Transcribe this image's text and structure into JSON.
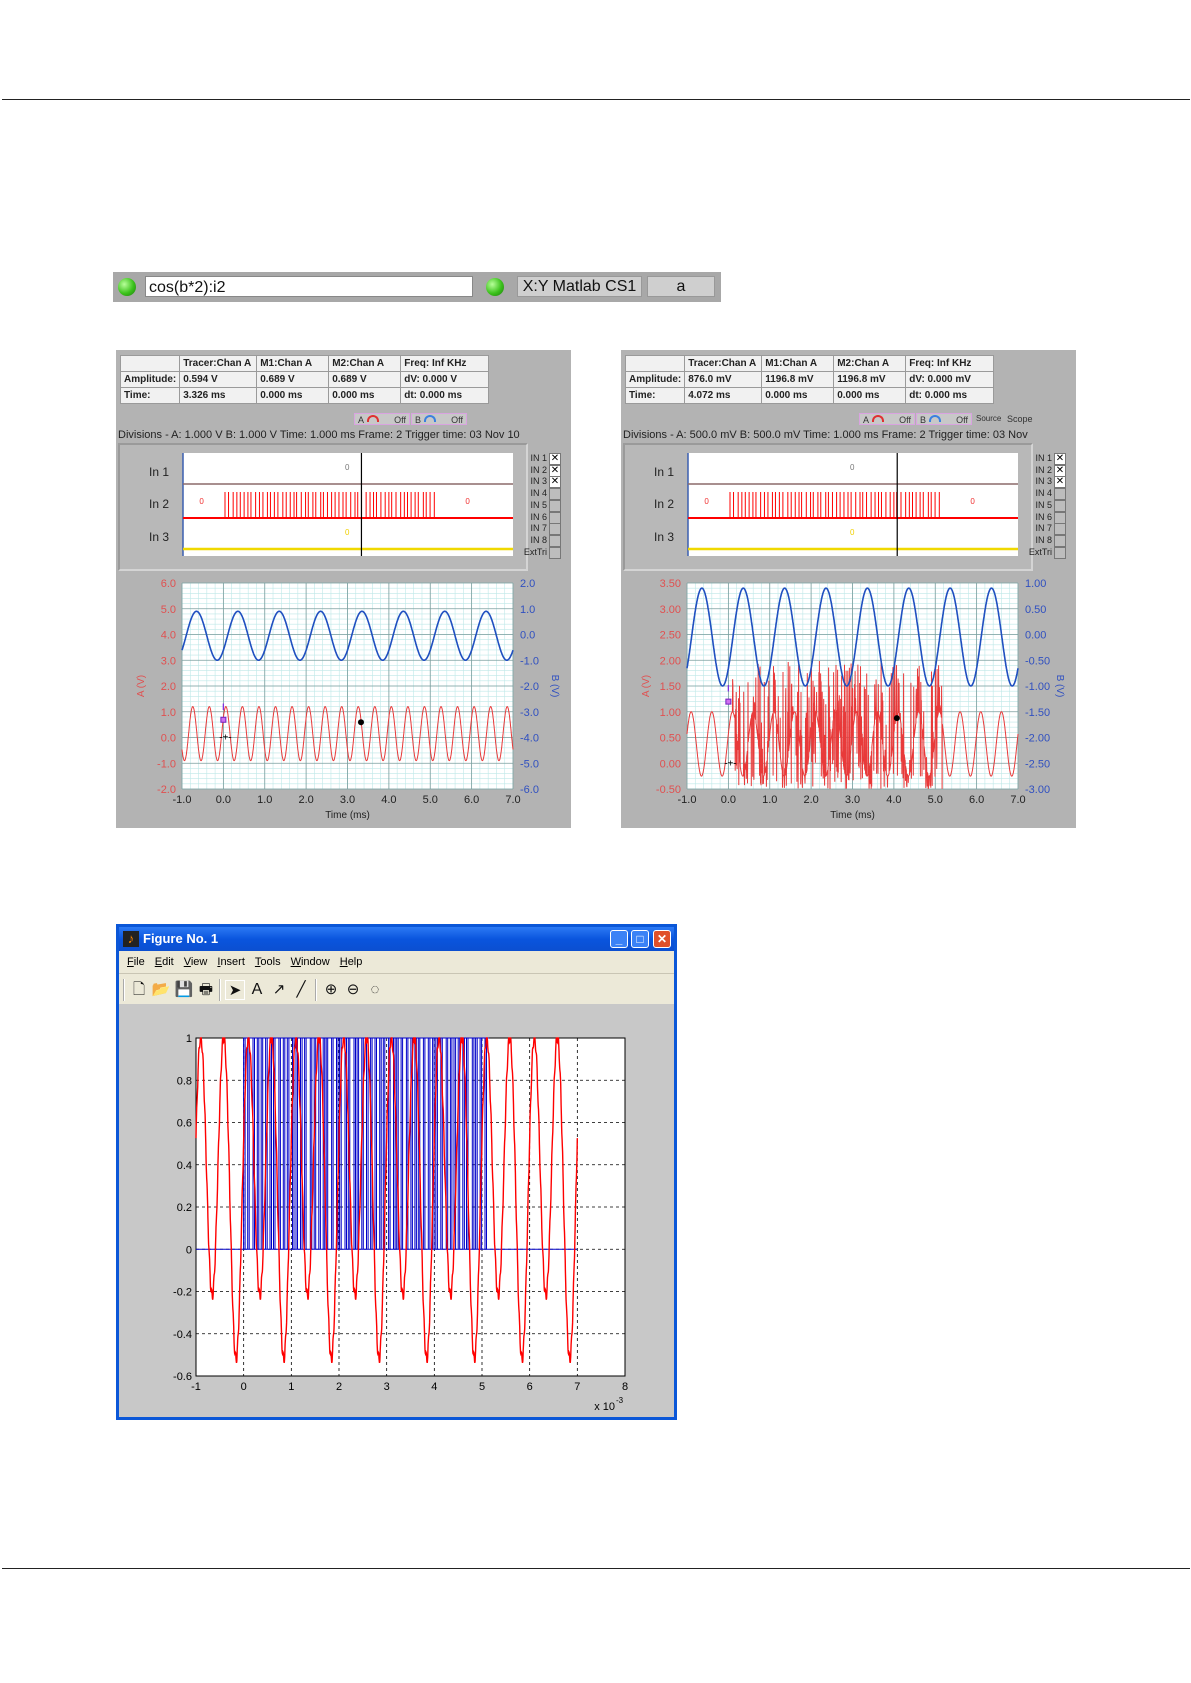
{
  "top_toolbar": {
    "expression": "cos(b*2):i2",
    "mode_label": "X:Y Matlab CS1",
    "channel_label": "a",
    "led_color": "#3cc21c"
  },
  "scopes": [
    {
      "table": {
        "headers": [
          "",
          "Tracer:Chan A",
          "M1:Chan A",
          "M2:Chan A",
          "Freq: Inf KHz"
        ],
        "rows": [
          [
            "Amplitude:",
            "0.594 V",
            "0.689 V",
            "0.689 V",
            "dV: 0.000 V"
          ],
          [
            "Time:",
            "3.326 ms",
            "0.000 ms",
            "0.000 ms",
            "dt:  0.000 ms"
          ]
        ]
      },
      "trigger_a": {
        "label": "A",
        "state": "Off"
      },
      "trigger_b": {
        "label": "B",
        "state": "Off"
      },
      "divisions": "Divisions -  A: 1.000 V    B: 1.000 V    Time: 1.000 ms  Frame: 2       Trigger time: 03 Nov 10",
      "digital": {
        "rows": [
          "In 1",
          "In 2",
          "In 3"
        ],
        "zero_label": "0",
        "inputs": [
          {
            "label": "IN 1",
            "checked": true
          },
          {
            "label": "IN 2",
            "checked": true
          },
          {
            "label": "IN 3",
            "checked": true
          },
          {
            "label": "IN 4",
            "checked": false
          },
          {
            "label": "IN 5",
            "checked": false
          },
          {
            "label": "IN 6",
            "checked": false
          },
          {
            "label": "IN 7",
            "checked": false
          },
          {
            "label": "IN 8",
            "checked": false
          },
          {
            "label": "ExtTri",
            "checked": false
          }
        ]
      }
    },
    {
      "table": {
        "headers": [
          "",
          "Tracer:Chan A",
          "M1:Chan A",
          "M2:Chan A",
          "Freq: Inf KHz"
        ],
        "rows": [
          [
            "Amplitude:",
            "876.0 mV",
            "1196.8 mV",
            "1196.8 mV",
            "dV: 0.000 mV"
          ],
          [
            "Time:",
            "4.072 ms",
            "0.000 ms",
            "0.000 ms",
            "dt:  0.000 ms"
          ]
        ]
      },
      "trigger_a": {
        "label": "A",
        "state": "Off"
      },
      "trigger_b": {
        "label": "B",
        "state": "Off"
      },
      "source_label": "Source",
      "source_value": "Scope",
      "divisions": "Divisions -  A: 500.0 mV    B: 500.0 mV    Time: 1.000 ms  Frame: 2       Trigger time: 03 Nov",
      "digital": {
        "rows": [
          "In 1",
          "In 2",
          "In 3"
        ],
        "zero_label": "0",
        "inputs": [
          {
            "label": "IN 1",
            "checked": true
          },
          {
            "label": "IN 2",
            "checked": true
          },
          {
            "label": "IN 3",
            "checked": true
          },
          {
            "label": "IN 4",
            "checked": false
          },
          {
            "label": "IN 5",
            "checked": false
          },
          {
            "label": "IN 6",
            "checked": false
          },
          {
            "label": "IN 7",
            "checked": false
          },
          {
            "label": "IN 8",
            "checked": false
          },
          {
            "label": "ExtTri",
            "checked": false
          }
        ]
      }
    }
  ],
  "matlab": {
    "title": "Figure No. 1",
    "menu": [
      "File",
      "Edit",
      "View",
      "Insert",
      "Tools",
      "Window",
      "Help"
    ],
    "toolbar": [
      "new-file",
      "open",
      "save",
      "print",
      "select-arrow",
      "insert-text",
      "insert-arrow",
      "insert-line",
      "zoom-in",
      "zoom-out",
      "rotate-3d"
    ]
  },
  "chart_data": [
    {
      "type": "line",
      "xlabel": "Time (ms)",
      "a_label": "A (V)",
      "b_label": "B (V)",
      "xlim": [
        -1,
        7
      ],
      "alim": [
        -2,
        6
      ],
      "blim": [
        -6,
        2
      ],
      "x_ticks": [
        "-1.0",
        "0.0",
        "1.0",
        "2.0",
        "3.0",
        "4.0",
        "5.0",
        "6.0",
        "7.0"
      ],
      "a_ticks": [
        "-2.0",
        "-1.0",
        "0.0",
        "1.0",
        "2.0",
        "3.0",
        "4.0",
        "5.0",
        "6.0"
      ],
      "b_ticks": [
        "-6.0",
        "-5.0",
        "-4.0",
        "-3.0",
        "-2.0",
        "-1.0",
        "0.0",
        "1.0",
        "2.0"
      ],
      "grid": true,
      "series": [
        {
          "name": "A",
          "axis": "a",
          "color": "#e83a3a",
          "offset": 0.15,
          "amplitude": 1.05,
          "period_ms": 0.4,
          "peak_ms": 0.06
        },
        {
          "name": "B",
          "axis": "b",
          "color": "#1f4fc0",
          "offset": -0.05,
          "amplitude": 0.95,
          "period_ms": 1.0,
          "peak_ms": 0.35
        }
      ],
      "tracer": {
        "t": 3.326,
        "a": 0.594
      },
      "m1": {
        "t": 0.0,
        "a": 0.689
      },
      "pulses": {
        "start_ms": 0.02,
        "end_ms": 5.18,
        "count": 56
      }
    },
    {
      "type": "line",
      "xlabel": "Time (ms)",
      "a_label": "A (V)",
      "b_label": "B (V)",
      "xlim": [
        -1,
        7
      ],
      "alim": [
        -0.5,
        3.5
      ],
      "blim": [
        -3,
        1
      ],
      "x_ticks": [
        "-1.0",
        "0.0",
        "1.0",
        "2.0",
        "3.0",
        "4.0",
        "5.0",
        "6.0",
        "7.0"
      ],
      "a_ticks": [
        "-0.50",
        "0.00",
        "0.50",
        "1.00",
        "1.50",
        "2.00",
        "2.50",
        "3.00",
        "3.50"
      ],
      "b_ticks": [
        "-3.00",
        "-2.50",
        "-2.00",
        "-1.50",
        "-1.00",
        "-0.50",
        "0.00",
        "0.50",
        "1.00"
      ],
      "grid": true,
      "series": [
        {
          "name": "A",
          "axis": "a",
          "color": "#e83a3a",
          "offset": 0.375,
          "amplitude": 0.625,
          "period_ms": 0.5,
          "peak_ms": 0.1,
          "burst": {
            "start_ms": 0.1,
            "end_ms": 5.2,
            "max": 2.0,
            "min": -0.5
          }
        },
        {
          "name": "B",
          "axis": "b",
          "color": "#1f4fc0",
          "offset": -0.05,
          "amplitude": 0.95,
          "period_ms": 1.0,
          "peak_ms": 0.36
        }
      ],
      "tracer": {
        "t": 4.072,
        "a": 0.876
      },
      "m1": {
        "t": 0.0,
        "a": 1.1968
      },
      "pulses": {
        "start_ms": 0.02,
        "end_ms": 5.18,
        "count": 56
      }
    },
    {
      "type": "line",
      "xlim": [
        -1,
        8
      ],
      "ylim": [
        -0.6,
        1
      ],
      "x_ticks": [
        "-1",
        "0",
        "1",
        "2",
        "3",
        "4",
        "5",
        "6",
        "7",
        "8"
      ],
      "y_ticks": [
        "-0.6",
        "-0.4",
        "-0.2",
        "0",
        "0.2",
        "0.4",
        "0.6",
        "0.8",
        "1"
      ],
      "x_multiplier": "x 10",
      "x_exponent": "-3",
      "grid": "dashed",
      "series": [
        {
          "name": "cos(b*2)",
          "color": "#ff0000",
          "c": 0.315,
          "a": 0.685,
          "b": 0.15,
          "peak_ms": 0.09,
          "period_ms": 1.0,
          "x_range_ms": [
            -1,
            7
          ]
        },
        {
          "name": "i2",
          "color": "#0000c8",
          "pulse_start_ms": 0.0,
          "pulse_end_ms": 5.15,
          "pulse_count": 56,
          "x_range_ms": [
            -1,
            7
          ]
        }
      ]
    }
  ]
}
